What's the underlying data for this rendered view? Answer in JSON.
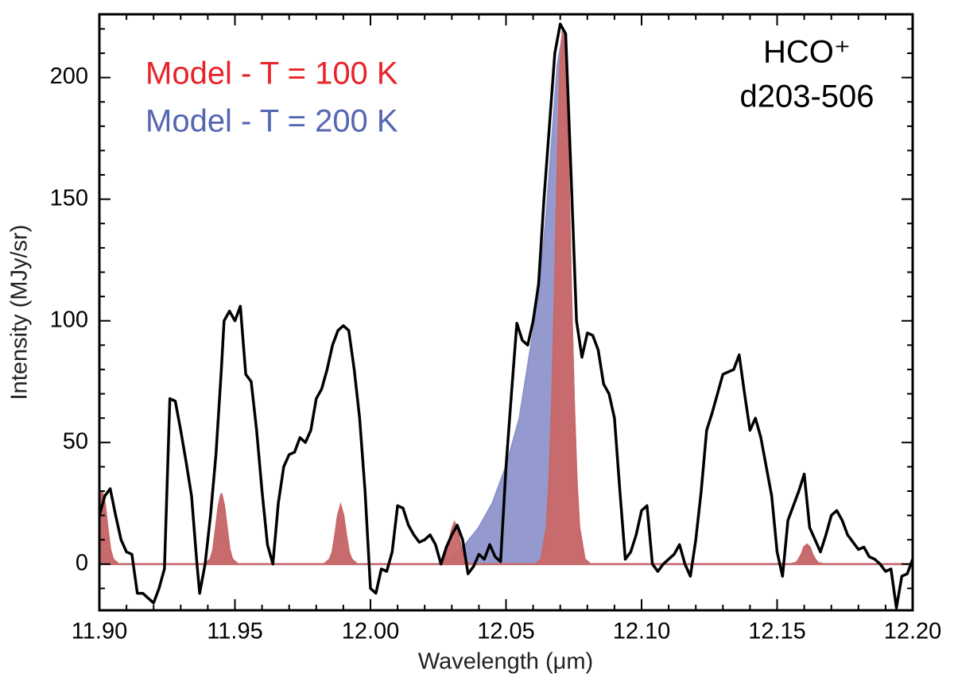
{
  "chart_data": {
    "type": "line",
    "xlabel": "Wavelength (μm)",
    "ylabel": "Intensity (MJy/sr)",
    "annotations": [
      "HCO⁺",
      "d203-506"
    ],
    "xlim": [
      11.9,
      12.2
    ],
    "ylim": [
      -19,
      226
    ],
    "xticks": [
      {
        "value": 11.9,
        "label": "11.90"
      },
      11.95,
      {
        "value": 12.0,
        "label": "12.00"
      },
      12.05,
      {
        "value": 12.1,
        "label": "12.10"
      },
      12.15,
      {
        "value": 12.2,
        "label": "12.20"
      }
    ],
    "yticks": [
      0,
      50,
      100,
      150,
      200
    ],
    "xminorticks": [
      11.91,
      11.92,
      11.93,
      11.94,
      11.96,
      11.97,
      11.98,
      11.99,
      12.01,
      12.02,
      12.03,
      12.04,
      12.06,
      12.07,
      12.08,
      12.09,
      12.11,
      12.12,
      12.13,
      12.14,
      12.16,
      12.17,
      12.18,
      12.19
    ],
    "yminorticks": [
      -10,
      10,
      20,
      30,
      40,
      60,
      70,
      80,
      90,
      110,
      120,
      130,
      140,
      160,
      170,
      180,
      190,
      210,
      220
    ],
    "series": [
      {
        "name": "Model - T = 200 K",
        "color": "#5566b3",
        "fill": "#8e95cb",
        "kind": "area",
        "x": [
          11.898,
          11.9,
          11.901,
          11.902,
          11.903,
          11.904,
          11.905,
          11.907,
          11.939,
          11.941,
          11.942,
          11.943,
          11.944,
          11.945,
          11.946,
          11.947,
          11.948,
          11.949,
          11.951,
          11.983,
          11.985,
          11.986,
          11.987,
          11.988,
          11.989,
          11.99,
          11.991,
          11.992,
          11.993,
          11.995,
          12.025,
          12.03,
          12.035,
          12.04,
          12.045,
          12.05,
          12.055,
          12.06,
          12.063,
          12.065,
          12.067,
          12.069,
          12.071,
          12.072,
          12.073,
          12.074,
          12.075,
          12.076,
          12.077,
          12.079,
          12.081,
          12.155,
          12.157,
          12.158,
          12.159,
          12.16,
          12.161,
          12.162,
          12.163,
          12.164,
          12.165,
          12.167,
          12.2
        ],
        "values": [
          0,
          23,
          27,
          23,
          14,
          6,
          2,
          0,
          0,
          2,
          5,
          13,
          21,
          25,
          21,
          13,
          5,
          2,
          0,
          0,
          1,
          4,
          10,
          17,
          20,
          17,
          10,
          4,
          1,
          0,
          0,
          3,
          8,
          15,
          25,
          40,
          60,
          95,
          120,
          145,
          175,
          205,
          218,
          205,
          163,
          112,
          68,
          35,
          15,
          2,
          0,
          0,
          0.4,
          1.5,
          3.5,
          6,
          7,
          6,
          3.5,
          1.5,
          0.4,
          0,
          0
        ]
      },
      {
        "name": "Model - T = 100 K",
        "color": "#e8232a",
        "fill": "#c96868",
        "kind": "area",
        "x": [
          11.898,
          11.9,
          11.901,
          11.902,
          11.903,
          11.904,
          11.905,
          11.907,
          11.939,
          11.941,
          11.942,
          11.943,
          11.944,
          11.945,
          11.946,
          11.947,
          11.948,
          11.949,
          11.951,
          11.983,
          11.985,
          11.986,
          11.987,
          11.988,
          11.989,
          11.99,
          11.991,
          11.992,
          11.993,
          11.995,
          12.025,
          12.027,
          12.028,
          12.029,
          12.03,
          12.031,
          12.032,
          12.033,
          12.034,
          12.035,
          12.037,
          12.061,
          12.063,
          12.065,
          12.066,
          12.067,
          12.068,
          12.069,
          12.07,
          12.071,
          12.072,
          12.073,
          12.074,
          12.075,
          12.076,
          12.077,
          12.079,
          12.081,
          12.155,
          12.157,
          12.158,
          12.159,
          12.16,
          12.161,
          12.162,
          12.163,
          12.164,
          12.165,
          12.167,
          12.2
        ],
        "values": [
          0,
          25,
          30,
          25,
          15,
          6,
          2,
          0,
          0,
          2,
          6,
          15,
          24,
          29,
          24,
          15,
          6,
          2,
          0,
          0,
          2,
          5,
          12,
          20,
          24,
          20,
          12,
          5,
          2,
          0,
          0,
          1,
          4,
          9,
          14,
          17,
          14,
          9,
          4,
          1,
          0,
          0,
          2,
          15,
          35,
          68,
          112,
          163,
          205,
          220,
          205,
          163,
          112,
          68,
          35,
          15,
          2,
          0,
          0,
          0.5,
          2,
          4,
          7,
          8,
          7,
          4,
          2,
          0.5,
          0,
          0
        ]
      },
      {
        "name": null,
        "color": "#000000",
        "kind": "line",
        "x": [
          11.9,
          11.902,
          11.904,
          11.906,
          11.908,
          11.91,
          11.912,
          11.914,
          11.916,
          11.918,
          11.92,
          11.922,
          11.924,
          11.926,
          11.928,
          11.93,
          11.932,
          11.934,
          11.936,
          11.937,
          11.939,
          11.941,
          11.943,
          11.945,
          11.946,
          11.948,
          11.95,
          11.952,
          11.954,
          11.956,
          11.958,
          11.96,
          11.962,
          11.964,
          11.966,
          11.968,
          11.97,
          11.972,
          11.974,
          11.976,
          11.978,
          11.98,
          11.982,
          11.984,
          11.986,
          11.988,
          11.99,
          11.992,
          11.994,
          11.996,
          11.998,
          12.0,
          12.002,
          12.004,
          12.006,
          12.008,
          12.01,
          12.012,
          12.014,
          12.016,
          12.018,
          12.02,
          12.022,
          12.024,
          12.026,
          12.028,
          12.03,
          12.032,
          12.034,
          12.036,
          12.038,
          12.04,
          12.042,
          12.044,
          12.046,
          12.048,
          12.05,
          12.052,
          12.054,
          12.056,
          12.058,
          12.06,
          12.062,
          12.064,
          12.066,
          12.068,
          12.07,
          12.072,
          12.074,
          12.076,
          12.078,
          12.08,
          12.082,
          12.084,
          12.086,
          12.088,
          12.09,
          12.092,
          12.094,
          12.096,
          12.098,
          12.1,
          12.102,
          12.104,
          12.106,
          12.108,
          12.11,
          12.112,
          12.114,
          12.116,
          12.118,
          12.12,
          12.122,
          12.124,
          12.126,
          12.128,
          12.13,
          12.132,
          12.134,
          12.136,
          12.138,
          12.14,
          12.142,
          12.144,
          12.146,
          12.148,
          12.15,
          12.152,
          12.154,
          12.156,
          12.158,
          12.16,
          12.162,
          12.164,
          12.166,
          12.168,
          12.17,
          12.172,
          12.174,
          12.176,
          12.178,
          12.18,
          12.182,
          12.184,
          12.186,
          12.188,
          12.19,
          12.192,
          12.194,
          12.196,
          12.198,
          12.2
        ],
        "values": [
          20,
          28,
          31,
          20,
          10,
          5,
          4,
          -12,
          -12,
          -14,
          -16,
          -10,
          -2,
          68,
          67,
          55,
          42,
          28,
          0,
          -12,
          0,
          20,
          45,
          80,
          100,
          104,
          100,
          106,
          78,
          75,
          55,
          30,
          8,
          0,
          25,
          40,
          45,
          46,
          52,
          50,
          55,
          68,
          72,
          80,
          90,
          96,
          98,
          96,
          80,
          60,
          30,
          -10,
          -12,
          -2,
          -3,
          5,
          24,
          23,
          16,
          12,
          9,
          10,
          12,
          8,
          0,
          7,
          12,
          16,
          10,
          -4,
          -1,
          4,
          2,
          8,
          3,
          1,
          40,
          70,
          99,
          92,
          90,
          100,
          115,
          150,
          180,
          210,
          222,
          218,
          160,
          100,
          85,
          95,
          94,
          88,
          74,
          70,
          60,
          30,
          2,
          5,
          12,
          22,
          24,
          0,
          -3,
          0,
          2,
          4,
          8,
          0,
          -5,
          10,
          30,
          55,
          62,
          70,
          78,
          79,
          80,
          86,
          70,
          55,
          60,
          52,
          40,
          28,
          5,
          -5,
          18,
          24,
          30,
          37,
          15,
          10,
          5,
          12,
          20,
          22,
          18,
          12,
          9,
          6,
          7,
          3,
          2,
          0,
          -3,
          -2,
          -18,
          -5,
          -4,
          2
        ]
      }
    ]
  }
}
